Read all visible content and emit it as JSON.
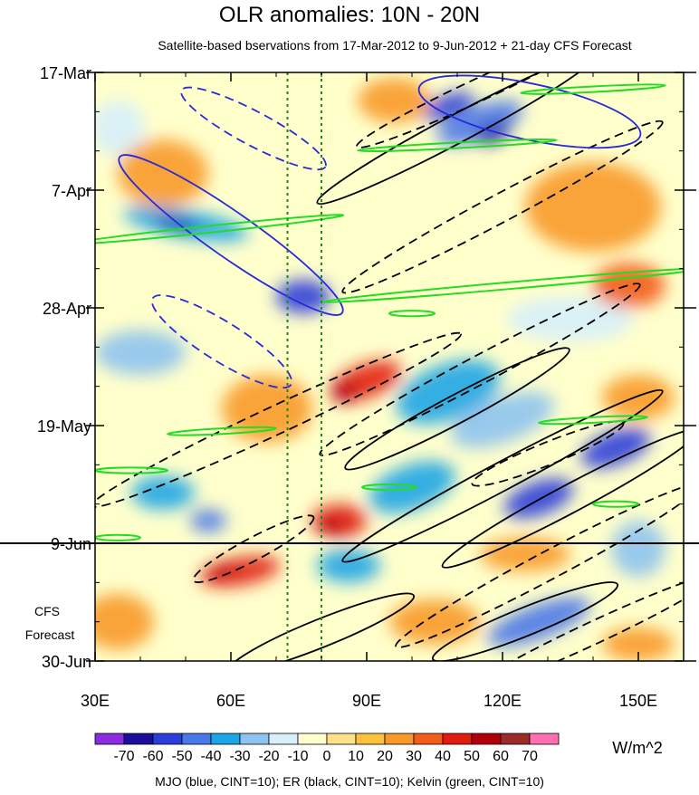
{
  "chart_data": {
    "type": "heatmap",
    "title": "OLR anomalies: 10N - 20N",
    "subtitle": "Satellite-based bservations from 17-Mar-2012 to 9-Jun-2012 + 21-day CFS Forecast",
    "x_axis": {
      "label": "",
      "range": [
        30,
        160
      ],
      "ticks": [
        30,
        60,
        90,
        120,
        150
      ],
      "tick_labels": [
        "30E",
        "60E",
        "90E",
        "120E",
        "150E"
      ]
    },
    "y_axis": {
      "label": "",
      "range": [
        "17-Mar-2012",
        "30-Jun-2012"
      ],
      "ticks": [
        "17-Mar",
        "7-Apr",
        "28-Apr",
        "19-May",
        "9-Jun",
        "30-Jun"
      ],
      "tick_days_from_start": [
        0,
        21,
        42,
        63,
        84,
        105
      ]
    },
    "forecast_divider": "9-Jun",
    "forecast_label": [
      "CFS",
      "Forecast"
    ],
    "reference_longitudes": [
      72.5,
      80
    ],
    "colorbar": {
      "unit": "W/m^2",
      "levels": [
        -70,
        -60,
        -50,
        -40,
        -30,
        -20,
        -10,
        0,
        10,
        20,
        30,
        40,
        50,
        60,
        70
      ],
      "labels": [
        "-70",
        "-60",
        "-50",
        "-40",
        "-30",
        "-20",
        "-10",
        "0",
        "10",
        "20",
        "30",
        "40",
        "50",
        "60",
        "70"
      ],
      "colors": [
        "#8b2be2",
        "#1a0d9e",
        "#2b3fd8",
        "#4a78e8",
        "#1ea5e6",
        "#8ec3ef",
        "#d6f0fb",
        "#ffffcc",
        "#fde08a",
        "#fbc23e",
        "#f89a2a",
        "#f25c19",
        "#e11c0f",
        "#b2000a",
        "#9c2c2c",
        "#ff6fb0"
      ]
    },
    "footer": "MJO (blue, CINT=10); ER (black, CINT=10); Kelvin (green, CINT=10)",
    "contour_colors": {
      "mjo": "#2a2ad8",
      "er": "#000000",
      "kelvin": "#22dd22"
    },
    "anomaly_blobs": [
      {
        "lon": 115,
        "day": 9,
        "rx": 10,
        "ry": 3,
        "angle": -20,
        "v": -50
      },
      {
        "lon": 118,
        "day": 11,
        "rx": 4,
        "ry": 1.5,
        "angle": -20,
        "v": -70
      },
      {
        "lon": 108,
        "day": 6,
        "rx": 6,
        "ry": 2,
        "angle": -20,
        "v": -60
      },
      {
        "lon": 50,
        "day": 27,
        "rx": 14,
        "ry": 2.5,
        "angle": 10,
        "v": -40
      },
      {
        "lon": 48,
        "day": 27,
        "rx": 5,
        "ry": 1,
        "angle": 10,
        "v": -70
      },
      {
        "lon": 76,
        "day": 40,
        "rx": 6,
        "ry": 3,
        "angle": 0,
        "v": -60
      },
      {
        "lon": 108,
        "day": 57,
        "rx": 12,
        "ry": 5,
        "angle": -20,
        "v": -40
      },
      {
        "lon": 120,
        "day": 62,
        "rx": 12,
        "ry": 4,
        "angle": -20,
        "v": -30
      },
      {
        "lon": 145,
        "day": 67,
        "rx": 8,
        "ry": 3,
        "angle": -20,
        "v": -60
      },
      {
        "lon": 128,
        "day": 76,
        "rx": 8,
        "ry": 3,
        "angle": -20,
        "v": -60
      },
      {
        "lon": 100,
        "day": 74,
        "rx": 10,
        "ry": 4,
        "angle": -20,
        "v": -40
      },
      {
        "lon": 45,
        "day": 75,
        "rx": 7,
        "ry": 3,
        "angle": 0,
        "v": -40
      },
      {
        "lon": 55,
        "day": 80,
        "rx": 4,
        "ry": 2,
        "angle": 0,
        "v": -50
      },
      {
        "lon": 86,
        "day": 88,
        "rx": 7,
        "ry": 3,
        "angle": 0,
        "v": -40
      },
      {
        "lon": 128,
        "day": 98,
        "rx": 12,
        "ry": 3,
        "angle": -20,
        "v": -50
      },
      {
        "lon": 135,
        "day": 44,
        "rx": 14,
        "ry": 4,
        "angle": 0,
        "v": -20
      },
      {
        "lon": 40,
        "day": 50,
        "rx": 10,
        "ry": 4,
        "angle": 0,
        "v": -30
      },
      {
        "lon": 150,
        "day": 85,
        "rx": 6,
        "ry": 5,
        "angle": 0,
        "v": -30
      },
      {
        "lon": 35,
        "day": 10,
        "rx": 6,
        "ry": 5,
        "angle": 0,
        "v": -20
      },
      {
        "lon": 90,
        "day": 55,
        "rx": 8,
        "ry": 3,
        "angle": -20,
        "v": 40
      },
      {
        "lon": 85,
        "day": 57,
        "rx": 3,
        "ry": 2,
        "angle": 0,
        "v": 50
      },
      {
        "lon": 84,
        "day": 80,
        "rx": 6,
        "ry": 3,
        "angle": 0,
        "v": 40
      },
      {
        "lon": 82,
        "day": 81,
        "rx": 3,
        "ry": 1.5,
        "angle": 0,
        "v": 50
      },
      {
        "lon": 62,
        "day": 89,
        "rx": 9,
        "ry": 2.5,
        "angle": -10,
        "v": 40
      },
      {
        "lon": 58,
        "day": 89,
        "rx": 3,
        "ry": 1,
        "angle": -10,
        "v": 50
      },
      {
        "lon": 68,
        "day": 60,
        "rx": 10,
        "ry": 6,
        "angle": 0,
        "v": 20
      },
      {
        "lon": 45,
        "day": 18,
        "rx": 10,
        "ry": 6,
        "angle": 0,
        "v": 20
      },
      {
        "lon": 140,
        "day": 24,
        "rx": 15,
        "ry": 8,
        "angle": 0,
        "v": 20
      },
      {
        "lon": 148,
        "day": 38,
        "rx": 8,
        "ry": 4,
        "angle": 0,
        "v": 30
      },
      {
        "lon": 35,
        "day": 98,
        "rx": 8,
        "ry": 5,
        "angle": 0,
        "v": 20
      },
      {
        "lon": 105,
        "day": 98,
        "rx": 10,
        "ry": 4,
        "angle": 0,
        "v": 20
      },
      {
        "lon": 150,
        "day": 102,
        "rx": 8,
        "ry": 3,
        "angle": 0,
        "v": 20
      },
      {
        "lon": 125,
        "day": 86,
        "rx": 10,
        "ry": 3,
        "angle": 0,
        "v": 20
      },
      {
        "lon": 150,
        "day": 58,
        "rx": 8,
        "ry": 4,
        "angle": 0,
        "v": 20
      },
      {
        "lon": 96,
        "day": 5,
        "rx": 8,
        "ry": 4,
        "angle": 0,
        "v": 20
      },
      {
        "lon": 70,
        "day": 8,
        "rx": 8,
        "ry": 5,
        "angle": 0,
        "v": -10
      }
    ],
    "mjo_contours": [
      {
        "lon": 60,
        "day": 29,
        "rx": 30,
        "ry": 4,
        "angle": 35,
        "dashed": false
      },
      {
        "lon": 126,
        "day": 7,
        "rx": 25,
        "ry": 5,
        "angle": 12,
        "dashed": false
      },
      {
        "lon": 65,
        "day": 10,
        "rx": 18,
        "ry": 3,
        "angle": 28,
        "dashed": true
      },
      {
        "lon": 58,
        "day": 48,
        "rx": 18,
        "ry": 3.5,
        "angle": 32,
        "dashed": true
      }
    ],
    "er_contours": [
      {
        "lon": 110,
        "day": 10,
        "rx": 35,
        "ry": 2.5,
        "angle": -28,
        "dashed": false
      },
      {
        "lon": 110,
        "day": 60,
        "rx": 28,
        "ry": 2.5,
        "angle": -28,
        "dashed": false
      },
      {
        "lon": 120,
        "day": 72,
        "rx": 40,
        "ry": 2.5,
        "angle": -28,
        "dashed": false
      },
      {
        "lon": 135,
        "day": 76,
        "rx": 32,
        "ry": 2.5,
        "angle": -28,
        "dashed": false
      },
      {
        "lon": 125,
        "day": 98,
        "rx": 22,
        "ry": 2.5,
        "angle": -22,
        "dashed": false
      },
      {
        "lon": 80,
        "day": 100,
        "rx": 22,
        "ry": 2.5,
        "angle": -22,
        "dashed": false
      },
      {
        "lon": 120,
        "day": 24,
        "rx": 40,
        "ry": 2.5,
        "angle": -28,
        "dashed": true
      },
      {
        "lon": 115,
        "day": 3,
        "rx": 30,
        "ry": 2,
        "angle": -25,
        "dashed": true
      },
      {
        "lon": 70,
        "day": 62,
        "rx": 45,
        "ry": 2.5,
        "angle": -25,
        "dashed": true
      },
      {
        "lon": 115,
        "day": 53,
        "rx": 40,
        "ry": 2.5,
        "angle": -28,
        "dashed": true
      },
      {
        "lon": 130,
        "day": 88,
        "rx": 38,
        "ry": 2.5,
        "angle": -28,
        "dashed": true
      },
      {
        "lon": 130,
        "day": 68,
        "rx": 18,
        "ry": 2,
        "angle": -22,
        "dashed": true
      },
      {
        "lon": 65,
        "day": 85,
        "rx": 15,
        "ry": 2,
        "angle": -28,
        "dashed": true
      },
      {
        "lon": 140,
        "day": 100,
        "rx": 30,
        "ry": 2,
        "angle": -25,
        "dashed": true
      }
    ],
    "kelvin_contours": [
      {
        "lon": 140,
        "day": 3,
        "rx": 16,
        "ry": 0.5,
        "angle": -3
      },
      {
        "lon": 110,
        "day": 13,
        "rx": 22,
        "ry": 0.5,
        "angle": -3
      },
      {
        "lon": 55,
        "day": 28,
        "rx": 30,
        "ry": 0.6,
        "angle": -6
      },
      {
        "lon": 122,
        "day": 38,
        "rx": 42,
        "ry": 0.6,
        "angle": -5
      },
      {
        "lon": 100,
        "day": 43,
        "rx": 5,
        "ry": 0.5,
        "angle": 0
      },
      {
        "lon": 58,
        "day": 64,
        "rx": 12,
        "ry": 0.5,
        "angle": -3
      },
      {
        "lon": 140,
        "day": 62,
        "rx": 12,
        "ry": 0.5,
        "angle": -3
      },
      {
        "lon": 38,
        "day": 71,
        "rx": 8,
        "ry": 0.5,
        "angle": 0
      },
      {
        "lon": 95,
        "day": 74,
        "rx": 6,
        "ry": 0.5,
        "angle": 0
      },
      {
        "lon": 145,
        "day": 77,
        "rx": 5,
        "ry": 0.5,
        "angle": 0
      },
      {
        "lon": 35,
        "day": 83,
        "rx": 5,
        "ry": 0.5,
        "angle": 0
      }
    ]
  }
}
